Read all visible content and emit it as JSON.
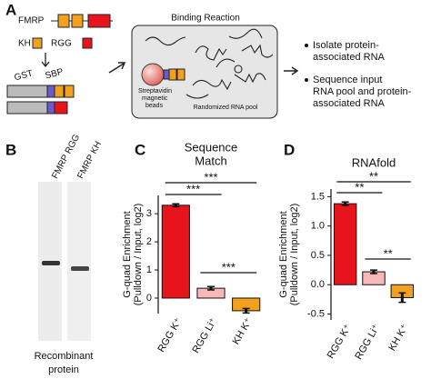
{
  "panel_labels": [
    "A",
    "B",
    "C",
    "D"
  ],
  "panel_a": {
    "fmrp": "FMRP",
    "kh": "KH",
    "rgg": "RGG",
    "gst": "GST",
    "sbp": "SBP",
    "binding_title": "Binding Reaction",
    "beads_label": [
      "Streptavidin",
      "magnetic",
      "beads"
    ],
    "pool_label": "Randomized RNA pool",
    "bullets": [
      [
        "Isolate protein-",
        "associated RNA"
      ],
      [
        "Sequence input",
        "RNA pool and protein-",
        "associated RNA"
      ]
    ]
  },
  "panel_b": {
    "lanes": [
      "FMRP RGG",
      "FMRP KH"
    ],
    "caption": [
      "Recombinant",
      "protein"
    ]
  },
  "chart_data": [
    {
      "type": "bar",
      "title": [
        "Sequence",
        "Match"
      ],
      "y_label": [
        "G-quad Enrichment",
        "(Pulldown / Input, log2)"
      ],
      "categories": [
        "RGG K⁺",
        "RGG Li⁺",
        "KH K⁺"
      ],
      "values": [
        3.3,
        0.35,
        -0.45
      ],
      "errors": [
        0.05,
        0.06,
        0.08
      ],
      "colors": [
        "#e8141c",
        "#f7b8b8",
        "#f2a11f"
      ],
      "ylim": [
        -0.55,
        3.65
      ],
      "yticks": [
        0,
        1,
        2,
        3
      ],
      "annotations": [
        "***",
        "***",
        "***"
      ]
    },
    {
      "type": "bar",
      "title": [
        "RNAfold"
      ],
      "y_label": [
        "G-quad Enrichment",
        "(Pulldown / Input, log2)"
      ],
      "categories": [
        "RGG K⁺",
        "RGG Li⁺",
        "KH K⁺"
      ],
      "values": [
        1.38,
        0.22,
        -0.22
      ],
      "errors": [
        0.03,
        0.03,
        0.08
      ],
      "colors": [
        "#e8141c",
        "#f7b8b8",
        "#f2a11f"
      ],
      "ylim": [
        -0.6,
        1.63
      ],
      "yticks": [
        -0.5,
        {
          "value": 0,
          "label": "0.0"
        },
        0.5,
        {
          "value": 1,
          "label": "1.0"
        },
        1.5
      ],
      "annotations": [
        "**",
        "**",
        "**"
      ]
    }
  ]
}
